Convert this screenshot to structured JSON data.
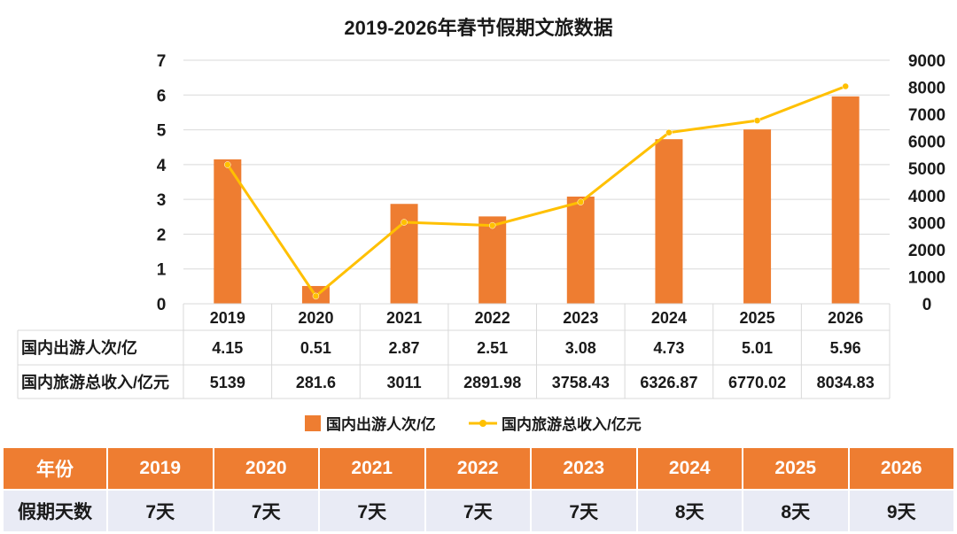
{
  "chart_data": {
    "type": "bar",
    "title": "2019-2026年春节假期文旅数据",
    "categories": [
      "2019",
      "2020",
      "2021",
      "2022",
      "2023",
      "2024",
      "2025",
      "2026"
    ],
    "series": [
      {
        "name": "国内出游人次/亿",
        "type": "bar",
        "axis": "left",
        "values": [
          4.15,
          0.51,
          2.87,
          2.51,
          3.08,
          4.73,
          5.01,
          5.96
        ],
        "display": [
          "4.15",
          "0.51",
          "2.87",
          "2.51",
          "3.08",
          "4.73",
          "5.01",
          "5.96"
        ]
      },
      {
        "name": "国内旅游总收入/亿元",
        "type": "line",
        "axis": "right",
        "values": [
          5139,
          281.6,
          3011,
          2891.98,
          3758.43,
          6326.87,
          6770.02,
          8034.83
        ],
        "display": [
          "5139",
          "281.6",
          "3011",
          "2891.98",
          "3758.43",
          "6326.87",
          "6770.02",
          "8034.83"
        ]
      }
    ],
    "y_left": {
      "range": [
        0,
        7
      ],
      "ticks": [
        "0",
        "1",
        "2",
        "3",
        "4",
        "5",
        "6",
        "7"
      ]
    },
    "y_right": {
      "range": [
        0,
        9000
      ],
      "ticks": [
        "0",
        "1000",
        "2000",
        "3000",
        "4000",
        "5000",
        "6000",
        "7000",
        "8000",
        "9000"
      ]
    },
    "grid": true,
    "legend": "bottom",
    "data_table": true,
    "colors": {
      "bar": "#ee7d31",
      "line": "#ffc000",
      "grid": "#d9d9d9"
    }
  },
  "holiday_table": {
    "header_label": "年份",
    "row_label": "假期天数",
    "years": [
      "2019",
      "2020",
      "2021",
      "2022",
      "2023",
      "2024",
      "2025",
      "2026"
    ],
    "days": [
      "7天",
      "7天",
      "7天",
      "7天",
      "7天",
      "8天",
      "8天",
      "9天"
    ],
    "colors": {
      "header_bg": "#ee7d31",
      "row_bg": "#e9ebf5"
    }
  }
}
